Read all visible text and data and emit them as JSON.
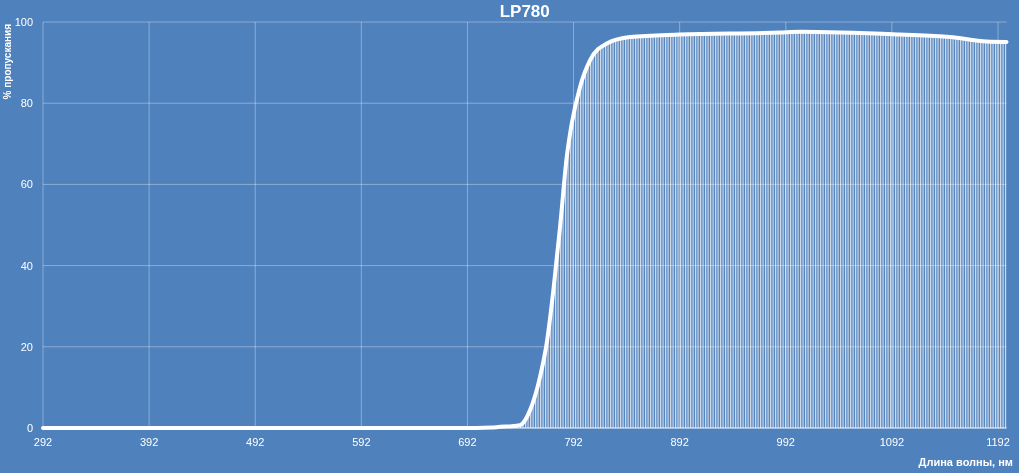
{
  "chart_data": {
    "type": "area",
    "title": "LP780",
    "xlabel": "Длина волны, нм",
    "ylabel": "% пропускания",
    "x": [
      292,
      400,
      500,
      600,
      700,
      715,
      723,
      732,
      741.6,
      751,
      760.4,
      766.7,
      773,
      779.3,
      785.6,
      790.3,
      798.1,
      807.6,
      823.3,
      845.3,
      892.4,
      986.6,
      1005,
      1099.7,
      1146.8,
      1181.4,
      1200
    ],
    "series": [
      {
        "color": "#ffffff",
        "values": [
          0,
          0,
          0,
          0,
          0,
          0.1,
          0.3,
          0.4,
          0.7,
          4.4,
          12.6,
          20.9,
          34,
          49.6,
          66.8,
          75,
          84,
          90.6,
          94.7,
          96.3,
          96.9,
          97.4,
          97.6,
          96.9,
          96.3,
          95.2,
          95.1
        ]
      }
    ],
    "xlim": [
      292,
      1200
    ],
    "xticks": [
      292,
      392,
      492,
      592,
      692,
      792,
      892,
      992,
      1092,
      1192
    ],
    "ylim": [
      0,
      100
    ],
    "yticks": [
      0,
      20,
      40,
      60,
      80,
      100
    ],
    "grid": true
  }
}
